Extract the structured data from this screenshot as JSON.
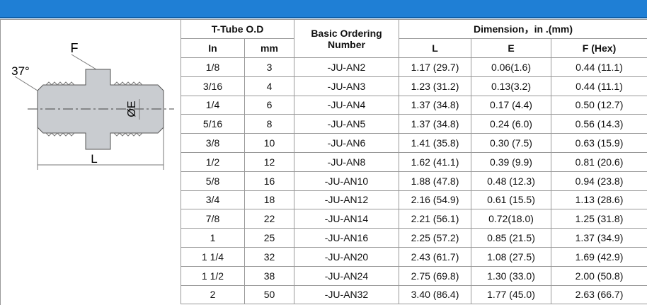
{
  "diagram": {
    "labels": {
      "f": "F",
      "angle": "37°",
      "diameter": "ØE",
      "length": "L"
    }
  },
  "table": {
    "group_headers": {
      "tube": "T-Tube O.D",
      "ordering": "Basic Ordering Number",
      "dimension": "Dimension，in .(mm)"
    },
    "columns": [
      "In",
      "mm",
      "L",
      "E",
      "F (Hex)"
    ],
    "rows": [
      [
        "1/8",
        "3",
        "-JU-AN2",
        "1.17 (29.7)",
        "0.06(1.6)",
        "0.44 (11.1)"
      ],
      [
        "3/16",
        "4",
        "-JU-AN3",
        "1.23 (31.2)",
        "0.13(3.2)",
        "0.44 (11.1)"
      ],
      [
        "1/4",
        "6",
        "-JU-AN4",
        "1.37 (34.8)",
        "0.17 (4.4)",
        "0.50 (12.7)"
      ],
      [
        "5/16",
        "8",
        "-JU-AN5",
        "1.37 (34.8)",
        "0.24 (6.0)",
        "0.56 (14.3)"
      ],
      [
        "3/8",
        "10",
        "-JU-AN6",
        "1.41 (35.8)",
        "0.30 (7.5)",
        "0.63 (15.9)"
      ],
      [
        "1/2",
        "12",
        "-JU-AN8",
        "1.62 (41.1)",
        "0.39 (9.9)",
        "0.81 (20.6)"
      ],
      [
        "5/8",
        "16",
        "-JU-AN10",
        "1.88 (47.8)",
        "0.48 (12.3)",
        "0.94 (23.8)"
      ],
      [
        "3/4",
        "18",
        "-JU-AN12",
        "2.16 (54.9)",
        "0.61 (15.5)",
        "1.13 (28.6)"
      ],
      [
        "7/8",
        "22",
        "-JU-AN14",
        "2.21 (56.1)",
        "0.72(18.0)",
        "1.25 (31.8)"
      ],
      [
        "1",
        "25",
        "-JU-AN16",
        "2.25 (57.2)",
        "0.85 (21.5)",
        "1.37 (34.9)"
      ],
      [
        "1 1/4",
        "32",
        "-JU-AN20",
        "2.43 (61.7)",
        "1.08 (27.5)",
        "1.69 (42.9)"
      ],
      [
        "1 1/2",
        "38",
        "-JU-AN24",
        "2.75 (69.8)",
        "1.30 (33.0)",
        "2.00 (50.8)"
      ],
      [
        "2",
        "50",
        "-JU-AN32",
        "3.40 (86.4)",
        "1.77 (45.0)",
        "2.63 (66.7)"
      ]
    ]
  }
}
